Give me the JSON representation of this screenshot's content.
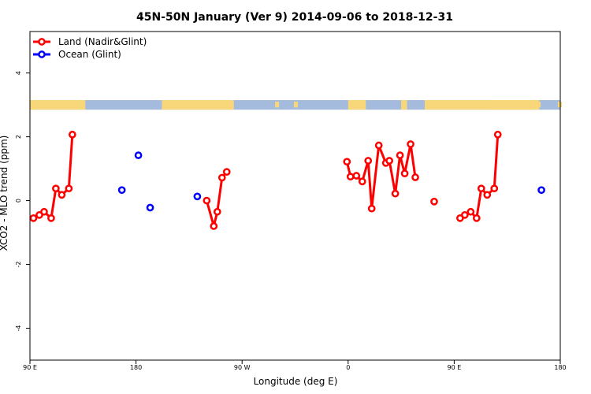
{
  "chart_data": {
    "type": "line",
    "title": "45N-50N January (Ver 9)   2014-09-06 to 2018-12-31",
    "xlabel": "Longitude (deg E)",
    "ylabel": "XCO2 - MLO trend (ppm)",
    "xlim": [
      90,
      540
    ],
    "ylim": [
      -5,
      5.3
    ],
    "x_ticks": [
      {
        "value": 90,
        "label": "90 E"
      },
      {
        "value": 180,
        "label": "180"
      },
      {
        "value": 270,
        "label": "90 W"
      },
      {
        "value": 360,
        "label": "0"
      },
      {
        "value": 450,
        "label": "90 E"
      },
      {
        "value": 540,
        "label": "180"
      }
    ],
    "y_ticks": [
      {
        "value": -4,
        "label": "-4"
      },
      {
        "value": -2,
        "label": "-2"
      },
      {
        "value": 0,
        "label": "0"
      },
      {
        "value": 2,
        "label": "2"
      },
      {
        "value": 4,
        "label": "4"
      }
    ],
    "legend_position": "top-left",
    "map_strip": {
      "ymin": 2.85,
      "ymax": 3.15,
      "land_color": "#f8d77a",
      "ocean_color": "#a4bbdd"
    },
    "series": [
      {
        "name": "Land (Nadir&Glint)",
        "color": "#ff0000",
        "segments": [
          [
            [
              93,
              -0.55
            ],
            [
              98,
              -0.45
            ],
            [
              102,
              -0.35
            ],
            [
              108,
              -0.55
            ],
            [
              112,
              0.38
            ],
            [
              117,
              0.18
            ],
            [
              123,
              0.38
            ],
            [
              126,
              2.07
            ]
          ],
          [
            [
              240,
              0.0
            ],
            [
              246,
              -0.8
            ],
            [
              249,
              -0.35
            ],
            [
              253,
              0.72
            ],
            [
              257,
              0.9
            ]
          ],
          [
            [
              359,
              1.22
            ],
            [
              362,
              0.75
            ],
            [
              367,
              0.78
            ],
            [
              372,
              0.6
            ],
            [
              377,
              1.25
            ],
            [
              380,
              -0.25
            ],
            [
              386,
              1.73
            ],
            [
              392,
              1.18
            ],
            [
              395,
              1.25
            ],
            [
              400,
              0.22
            ],
            [
              404,
              1.42
            ],
            [
              408,
              0.85
            ],
            [
              413,
              1.77
            ],
            [
              417,
              0.73
            ]
          ],
          [
            [
              433,
              -0.03
            ]
          ],
          [
            [
              455,
              -0.55
            ],
            [
              459,
              -0.45
            ],
            [
              464,
              -0.35
            ],
            [
              469,
              -0.55
            ],
            [
              473,
              0.38
            ],
            [
              478,
              0.18
            ],
            [
              484,
              0.38
            ],
            [
              487,
              2.07
            ]
          ]
        ]
      },
      {
        "name": "Ocean (Glint)",
        "color": "#0000ff",
        "points": [
          [
            168,
            0.33
          ],
          [
            182,
            1.42
          ],
          [
            192,
            -0.22
          ],
          [
            232,
            0.13
          ],
          [
            524,
            0.33
          ]
        ]
      }
    ]
  }
}
